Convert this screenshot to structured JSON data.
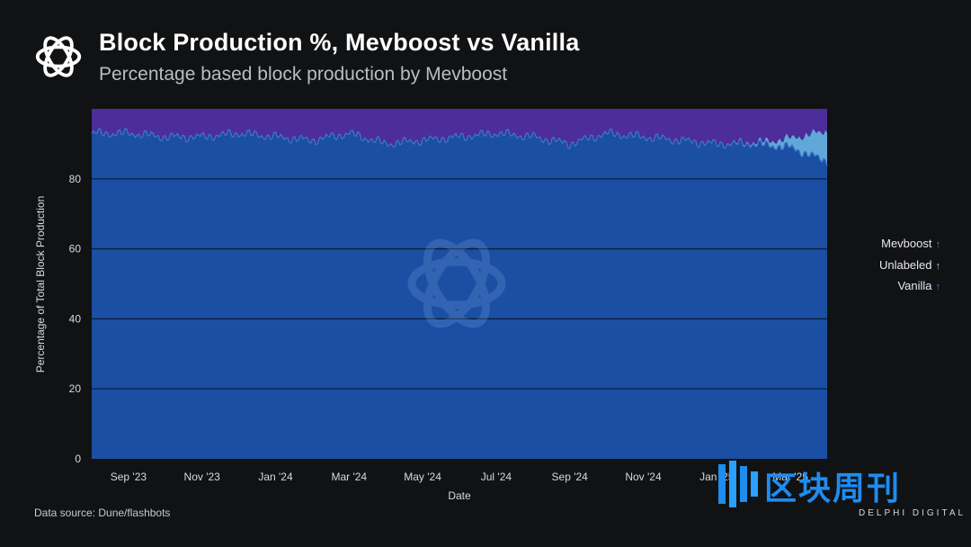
{
  "header": {
    "title": "Block Production %, Mevboost vs Vanilla",
    "subtitle": "Percentage based block production by Mevboost"
  },
  "footer": {
    "source": "Data source: Dune/flashbots",
    "brand": "DELPHI DIGITAL",
    "watermark_text": "区块周刊"
  },
  "colors": {
    "mevboost": "#1a4fa3",
    "unlabeled": "#5fa8d8",
    "vanilla": "#4c2d9a",
    "background": "#111214",
    "watermark": "#1e8cf0"
  },
  "icons": {
    "logo": "delphi-knot-icon",
    "watermark": "qukuai-logo-icon"
  },
  "chart_data": {
    "type": "area",
    "stacked": true,
    "xlabel": "Date",
    "ylabel": "Percentage of Total Block Production",
    "ylim": [
      0,
      100
    ],
    "yticks": [
      0,
      20,
      40,
      60,
      80
    ],
    "x_ticks": [
      "Sep '23",
      "Nov '23",
      "Jan '24",
      "Mar '24",
      "May '24",
      "Jul '24",
      "Sep '24",
      "Nov '24",
      "Jan '25",
      "Mar '25"
    ],
    "grid": true,
    "legend_position": "right",
    "x": [
      "2023-08",
      "2023-09",
      "2023-10",
      "2023-11",
      "2023-12",
      "2024-01",
      "2024-02",
      "2024-03",
      "2024-04",
      "2024-05",
      "2024-06",
      "2024-07",
      "2024-08",
      "2024-09",
      "2024-10",
      "2024-11",
      "2024-12",
      "2025-01",
      "2025-02",
      "2025-03",
      "2025-04"
    ],
    "series": [
      {
        "name": "Mevboost",
        "values": [
          93,
          93,
          92,
          92,
          93,
          92,
          91,
          93,
          90,
          91,
          92,
          93,
          92,
          90,
          93,
          92,
          91,
          90,
          90,
          89,
          85
        ]
      },
      {
        "name": "Unlabeled",
        "values": [
          0,
          0,
          0,
          0,
          0,
          0,
          0,
          0,
          0,
          0,
          0,
          0,
          0,
          0,
          0,
          0,
          0,
          0,
          0.5,
          2,
          7
        ]
      },
      {
        "name": "Vanilla",
        "values": [
          7,
          7,
          8,
          8,
          7,
          8,
          9,
          7,
          10,
          9,
          8,
          7,
          8,
          10,
          7,
          8,
          9,
          10,
          9.5,
          9,
          8
        ]
      }
    ]
  }
}
